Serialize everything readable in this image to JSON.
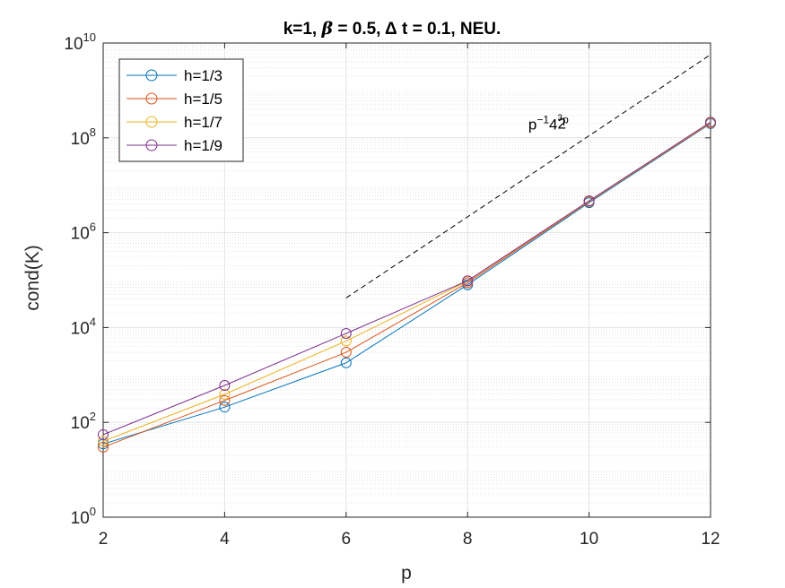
{
  "chart_data": {
    "type": "line",
    "title_parts": {
      "a": "k=1, ",
      "beta": "β",
      "b": " = 0.5, ",
      "delta": "Δ",
      "c": " t = 0.1,  NEU."
    },
    "xlabel": "p",
    "ylabel": "cond(K)",
    "x_scale": "linear",
    "y_scale": "log",
    "xlim": [
      2,
      12
    ],
    "ylim": [
      1,
      10000000000
    ],
    "x_ticks": [
      2,
      4,
      6,
      8,
      10,
      12
    ],
    "x_tick_labels": [
      "2",
      "4",
      "6",
      "8",
      "10",
      "12"
    ],
    "y_ticks": [
      1,
      100,
      10000,
      1000000,
      100000000,
      10000000000
    ],
    "y_tick_labels": [
      {
        "base": "10",
        "exp": "0"
      },
      {
        "base": "10",
        "exp": "2"
      },
      {
        "base": "10",
        "exp": "4"
      },
      {
        "base": "10",
        "exp": "6"
      },
      {
        "base": "10",
        "exp": "8"
      },
      {
        "base": "10",
        "exp": "10"
      }
    ],
    "grid": true,
    "minor_grid": true,
    "legend_position": "top-left",
    "x": [
      2,
      4,
      6,
      8,
      10,
      12
    ],
    "series": [
      {
        "name": "h=1/3",
        "color": "#0072BD",
        "values": [
          35,
          210,
          1800,
          80000,
          4300000,
          200000000
        ]
      },
      {
        "name": "h=1/5",
        "color": "#D95319",
        "values": [
          30,
          290,
          3000,
          88000,
          4500000,
          205000000
        ]
      },
      {
        "name": "h=1/7",
        "color": "#EDB120",
        "values": [
          40,
          390,
          5200,
          95000,
          4600000,
          210000000
        ]
      },
      {
        "name": "h=1/9",
        "color": "#7E2F8E",
        "values": [
          55,
          600,
          7500,
          97000,
          4700000,
          215000000
        ]
      }
    ],
    "reference_line": {
      "style": "dashed",
      "color": "#000000",
      "x": [
        6,
        12
      ],
      "values": [
        42000,
        5700000000
      ]
    },
    "annotation": {
      "base": "p",
      "exp": "−1",
      "base2": "4",
      "frac_num": "3",
      "frac_den": "2",
      "exp_tail": "p",
      "x": 9.0,
      "y": 150000000
    }
  }
}
